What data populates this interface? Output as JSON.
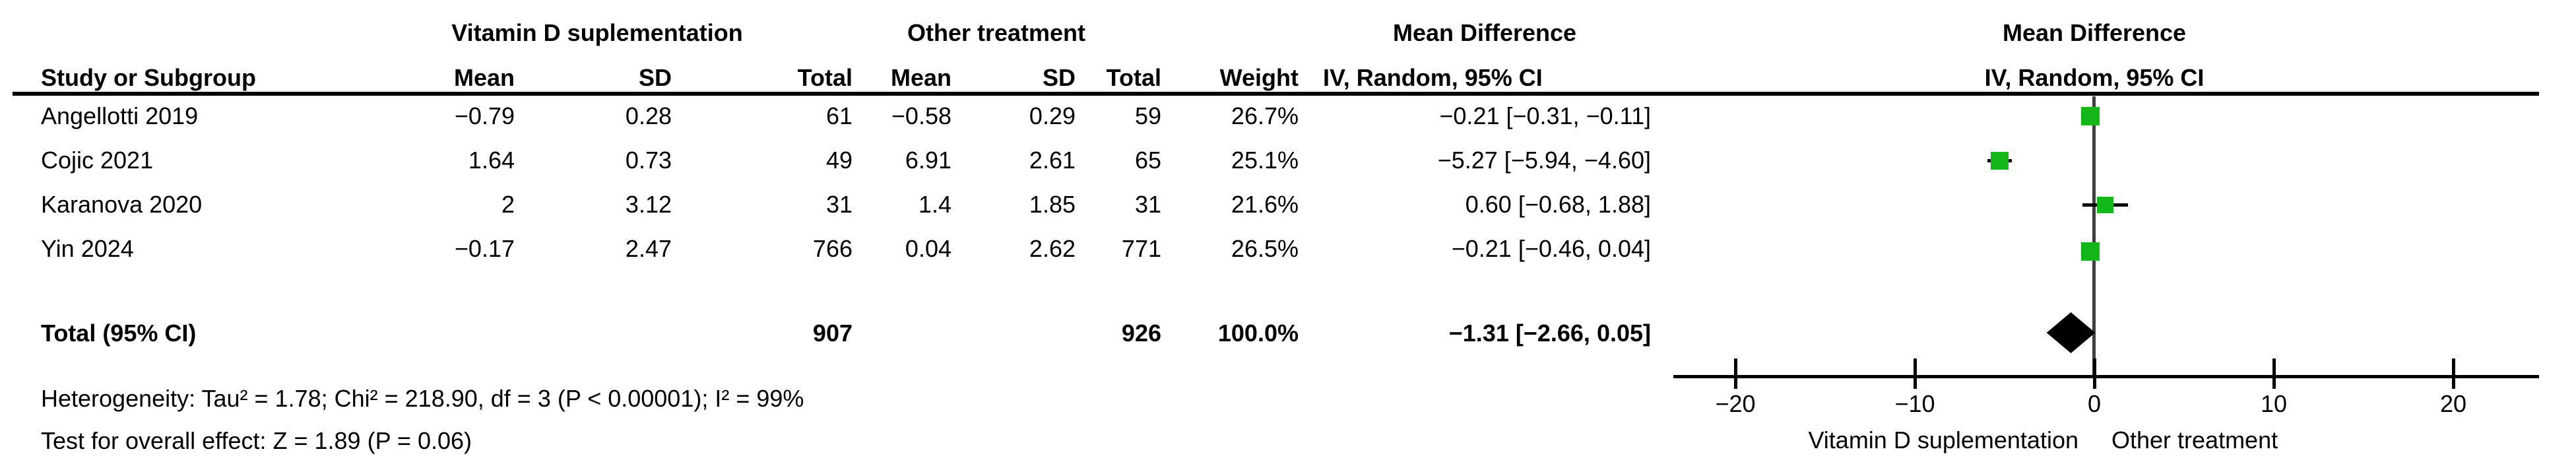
{
  "table": {
    "group1_header": "Vitamin D suplementation",
    "group2_header": "Other treatment",
    "md_col_header_line1": "Mean Difference",
    "md_col_header_line2": "IV, Random, 95% CI",
    "plot_header_line1": "Mean Difference",
    "plot_header_line2": "IV, Random, 95% CI",
    "columns": {
      "study": "Study or Subgroup",
      "mean": "Mean",
      "sd": "SD",
      "total": "Total",
      "weight": "Weight"
    },
    "rows": [
      {
        "study": "Angellotti 2019",
        "mean1": "−0.79",
        "sd1": "0.28",
        "total1": "61",
        "mean2": "−0.58",
        "sd2": "0.29",
        "total2": "59",
        "weight": "26.7%",
        "ci": "−0.21 [−0.31, −0.11]"
      },
      {
        "study": "Cojic 2021",
        "mean1": "1.64",
        "sd1": "0.73",
        "total1": "49",
        "mean2": "6.91",
        "sd2": "2.61",
        "total2": "65",
        "weight": "25.1%",
        "ci": "−5.27 [−5.94, −4.60]"
      },
      {
        "study": "Karanova 2020",
        "mean1": "2",
        "sd1": "3.12",
        "total1": "31",
        "mean2": "1.4",
        "sd2": "1.85",
        "total2": "31",
        "weight": "21.6%",
        "ci": "0.60 [−0.68, 1.88]"
      },
      {
        "study": "Yin 2024",
        "mean1": "−0.17",
        "sd1": "2.47",
        "total1": "766",
        "mean2": "0.04",
        "sd2": "2.62",
        "total2": "771",
        "weight": "26.5%",
        "ci": "−0.21 [−0.46, 0.04]"
      }
    ],
    "total_row": {
      "label": "Total (95% CI)",
      "total1": "907",
      "total2": "926",
      "weight": "100.0%",
      "ci": "−1.31 [−2.66, 0.05]"
    },
    "heterogeneity": "Heterogeneity: Tau² = 1.78; Chi² = 218.90, df = 3 (P < 0.00001); I² = 99%",
    "overall_effect": "Test for overall effect: Z = 1.89 (P = 0.06)"
  },
  "chart_data": {
    "type": "forest",
    "effect_measure": "Mean Difference, IV, Random, 95% CI",
    "studies": [
      {
        "name": "Angellotti 2019",
        "md": -0.21,
        "ci_low": -0.31,
        "ci_high": -0.11,
        "weight_pct": 26.7
      },
      {
        "name": "Cojic 2021",
        "md": -5.27,
        "ci_low": -5.94,
        "ci_high": -4.6,
        "weight_pct": 25.1
      },
      {
        "name": "Karanova 2020",
        "md": 0.6,
        "ci_low": -0.68,
        "ci_high": 1.88,
        "weight_pct": 21.6
      },
      {
        "name": "Yin 2024",
        "md": -0.21,
        "ci_low": -0.46,
        "ci_high": 0.04,
        "weight_pct": 26.5
      }
    ],
    "total": {
      "md": -1.31,
      "ci_low": -2.66,
      "ci_high": 0.05
    },
    "x_axis": {
      "ticks": [
        -20,
        -10,
        0,
        10,
        20
      ],
      "min_shown": -23.5,
      "max_shown": 24.8,
      "label_left": "Vitamin D suplementation",
      "label_right": "Other treatment"
    },
    "marker_color": "#12b818",
    "line_color": "#000000",
    "diamond_color": "#000000"
  }
}
